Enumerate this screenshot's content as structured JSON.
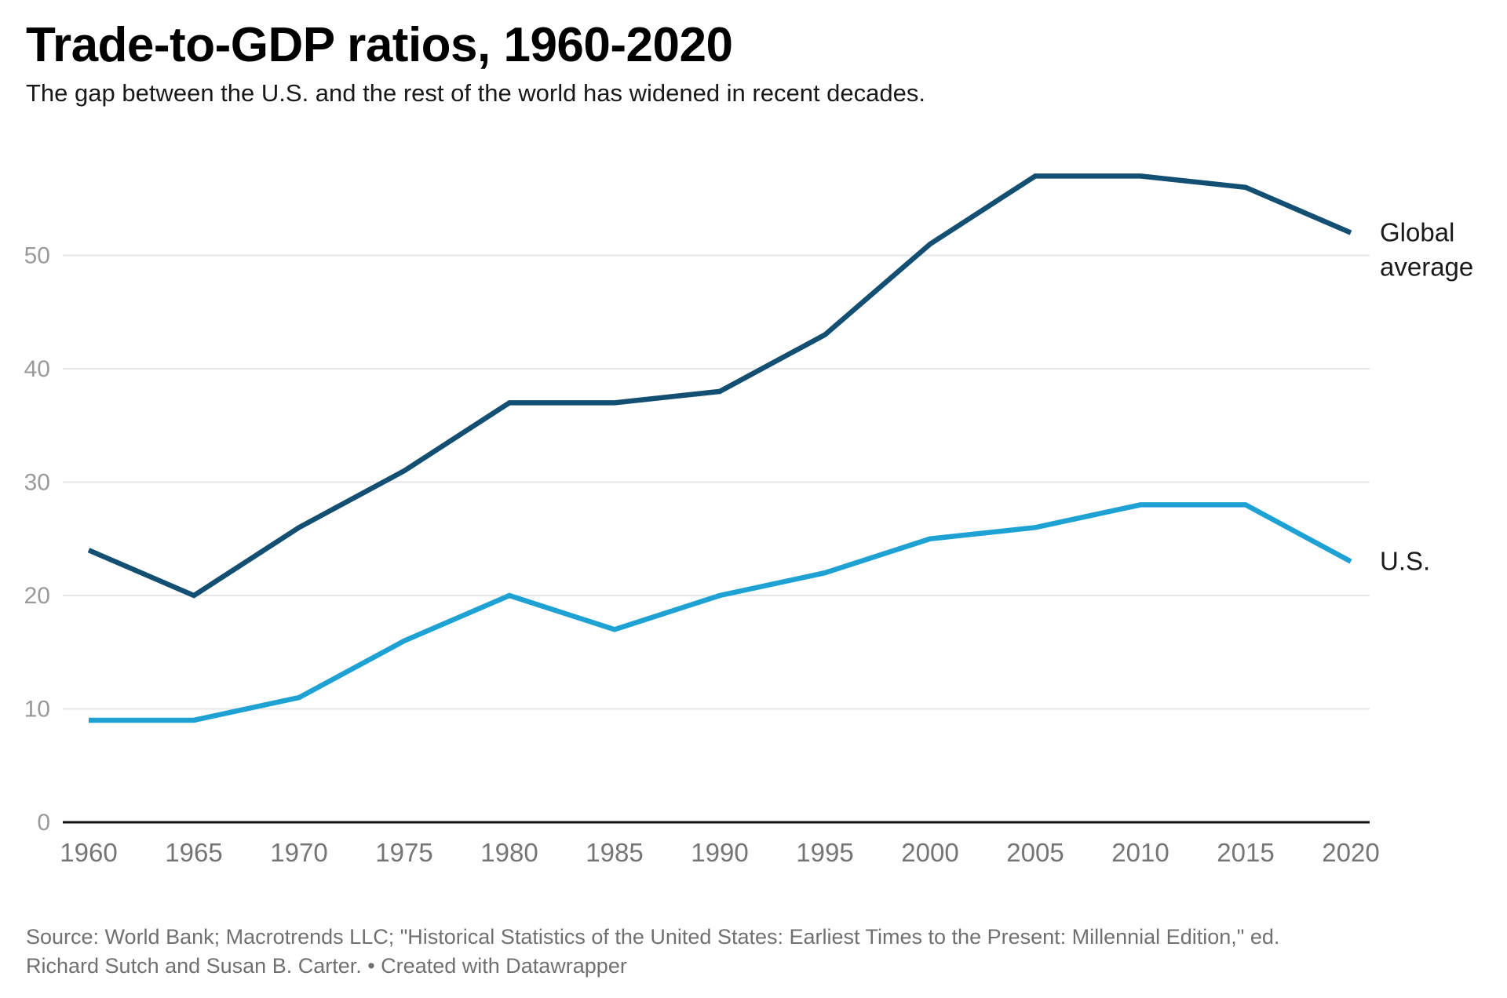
{
  "title": "Trade-to-GDP ratios, 1960-2020",
  "subtitle": "The gap between the U.S. and the rest of the world has widened in recent decades.",
  "source": {
    "line1": "Source: World Bank; Macrotrends LLC; \"Historical Statistics of the United States: Earliest Times to the Present: Millennial Edition,\" ed.",
    "line2": "Richard Sutch and Susan B. Carter. • Created with Datawrapper"
  },
  "colors": {
    "global_average_line": "#134f72",
    "us_line": "#1ea2d3",
    "gridline": "#e6e6e6",
    "axis_line": "#121212",
    "y_tick_label": "#9a9a9a",
    "x_tick_label": "#757575",
    "series_label": "#1a1a1a",
    "title": "#000000",
    "subtitle": "#191919",
    "source_text": "#707070"
  },
  "chart_data": {
    "type": "line",
    "title": "Trade-to-GDP ratios, 1960-2020",
    "subtitle": "The gap between the U.S. and the rest of the world has widened in recent decades.",
    "x": [
      1960,
      1965,
      1970,
      1975,
      1980,
      1985,
      1990,
      1995,
      2000,
      2005,
      2010,
      2015,
      2020
    ],
    "series": [
      {
        "name": "Global average",
        "label_lines": [
          "Global",
          "average"
        ],
        "color": "#134f72",
        "values": [
          24,
          20,
          26,
          31,
          37,
          37,
          38,
          43,
          51,
          57,
          57,
          56,
          52
        ]
      },
      {
        "name": "U.S.",
        "label_lines": [
          "U.S."
        ],
        "color": "#1ea2d3",
        "values": [
          9,
          9,
          11,
          16,
          20,
          17,
          20,
          22,
          25,
          26,
          28,
          28,
          23
        ]
      }
    ],
    "xlabel": "",
    "ylabel": "",
    "ylim": [
      0,
      58
    ],
    "y_ticks": [
      0,
      10,
      20,
      30,
      40,
      50
    ],
    "grid": "horizontal",
    "legend_position": "right-of-line-ends"
  }
}
